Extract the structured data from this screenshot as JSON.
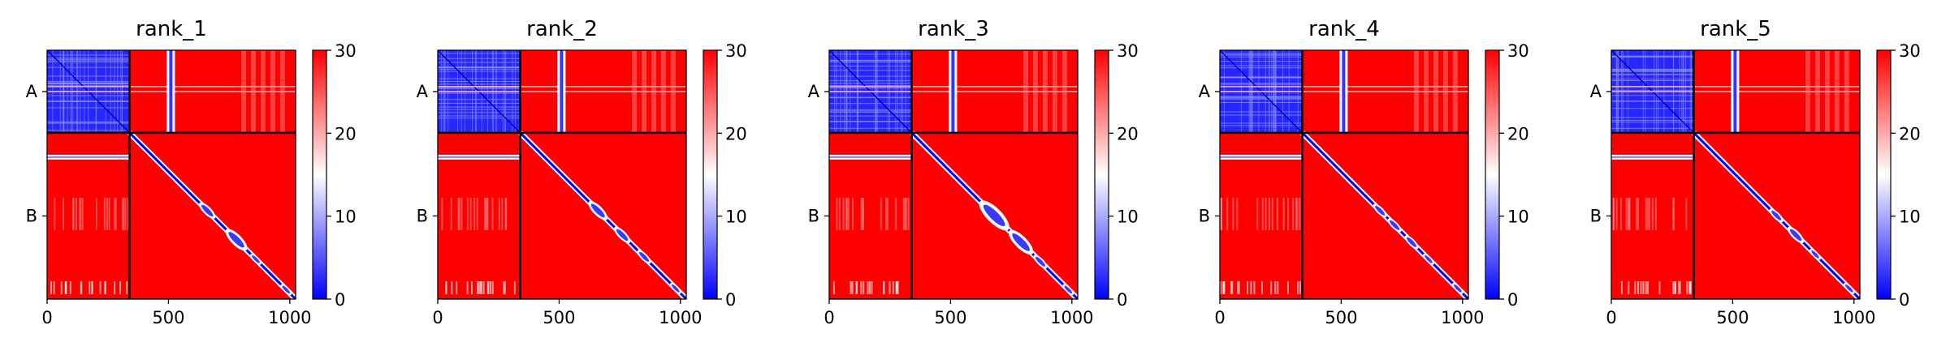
{
  "chart_data": [
    {
      "type": "heatmap",
      "title": "rank_1",
      "xlim": [
        0,
        1024
      ],
      "x_ticks": [
        0,
        500,
        1000
      ],
      "y_tick_labels": [
        "A",
        "B"
      ],
      "chain_boundary": 340,
      "colorbar": {
        "range": [
          0,
          30
        ],
        "ticks": [
          0,
          10,
          20,
          30
        ],
        "colors": [
          "#0000ff",
          "#ffffff",
          "#ff0000"
        ]
      },
      "diagonal_blobs": [
        {
          "center": 660,
          "size": 60
        },
        {
          "center": 780,
          "size": 80
        },
        {
          "center": 860,
          "size": 40
        },
        {
          "center": 985,
          "size": 40
        }
      ]
    },
    {
      "type": "heatmap",
      "title": "rank_2",
      "xlim": [
        0,
        1024
      ],
      "x_ticks": [
        0,
        500,
        1000
      ],
      "y_tick_labels": [
        "A",
        "B"
      ],
      "chain_boundary": 340,
      "colorbar": {
        "range": [
          0,
          30
        ],
        "ticks": [
          0,
          10,
          20,
          30
        ],
        "colors": [
          "#0000ff",
          "#ffffff",
          "#ff0000"
        ]
      },
      "diagonal_blobs": [
        {
          "center": 660,
          "size": 70
        },
        {
          "center": 760,
          "size": 60
        },
        {
          "center": 850,
          "size": 50
        },
        {
          "center": 980,
          "size": 40
        }
      ]
    },
    {
      "type": "heatmap",
      "title": "rank_3",
      "xlim": [
        0,
        1024
      ],
      "x_ticks": [
        0,
        500,
        1000
      ],
      "y_tick_labels": [
        "A",
        "B"
      ],
      "chain_boundary": 340,
      "colorbar": {
        "range": [
          0,
          30
        ],
        "ticks": [
          0,
          10,
          20,
          30
        ],
        "colors": [
          "#0000ff",
          "#ffffff",
          "#ff0000"
        ]
      },
      "diagonal_blobs": [
        {
          "center": 680,
          "size": 110
        },
        {
          "center": 790,
          "size": 90
        },
        {
          "center": 870,
          "size": 50
        },
        {
          "center": 985,
          "size": 40
        }
      ]
    },
    {
      "type": "heatmap",
      "title": "rank_4",
      "xlim": [
        0,
        1024
      ],
      "x_ticks": [
        0,
        500,
        1000
      ],
      "y_tick_labels": [
        "A",
        "B"
      ],
      "chain_boundary": 340,
      "colorbar": {
        "range": [
          0,
          30
        ],
        "ticks": [
          0,
          10,
          20,
          30
        ],
        "colors": [
          "#0000ff",
          "#ffffff",
          "#ff0000"
        ]
      },
      "diagonal_blobs": [
        {
          "center": 660,
          "size": 50
        },
        {
          "center": 720,
          "size": 50
        },
        {
          "center": 790,
          "size": 50
        },
        {
          "center": 860,
          "size": 40
        },
        {
          "center": 980,
          "size": 40
        }
      ]
    },
    {
      "type": "heatmap",
      "title": "rank_5",
      "xlim": [
        0,
        1024
      ],
      "x_ticks": [
        0,
        500,
        1000
      ],
      "y_tick_labels": [
        "A",
        "B"
      ],
      "chain_boundary": 340,
      "colorbar": {
        "range": [
          0,
          30
        ],
        "ticks": [
          0,
          10,
          20,
          30
        ],
        "colors": [
          "#0000ff",
          "#ffffff",
          "#ff0000"
        ]
      },
      "diagonal_blobs": [
        {
          "center": 680,
          "size": 50
        },
        {
          "center": 760,
          "size": 60
        },
        {
          "center": 840,
          "size": 40
        },
        {
          "center": 980,
          "size": 40
        }
      ]
    }
  ]
}
